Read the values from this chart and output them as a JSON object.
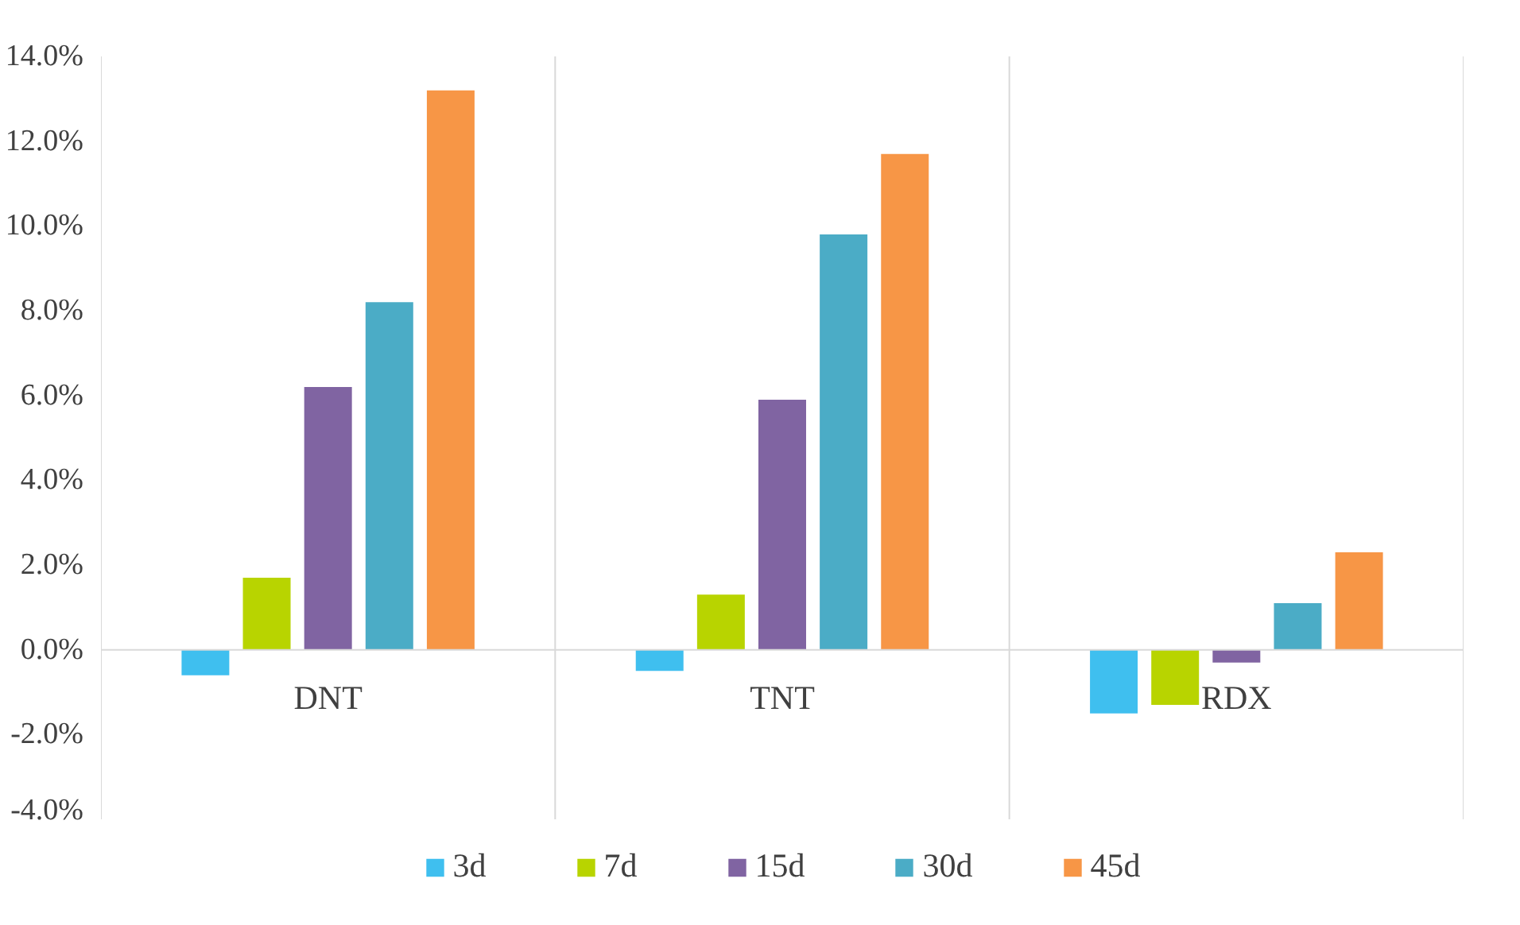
{
  "chart_data": {
    "type": "bar",
    "categories": [
      "DNT",
      "TNT",
      "RDX"
    ],
    "series": [
      {
        "name": "3d",
        "color": "#3fbfef",
        "values": [
          -0.6,
          -0.5,
          -1.5
        ]
      },
      {
        "name": "7d",
        "color": "#b8d400",
        "values": [
          1.7,
          1.3,
          -1.3
        ]
      },
      {
        "name": "15d",
        "color": "#8064a2",
        "values": [
          6.2,
          5.9,
          -0.3
        ]
      },
      {
        "name": "30d",
        "color": "#4bacc6",
        "values": [
          8.2,
          9.8,
          1.1
        ]
      },
      {
        "name": "45d",
        "color": "#f79646",
        "values": [
          13.2,
          11.7,
          2.3
        ]
      }
    ],
    "ylim": [
      -4,
      14
    ],
    "yticks": [
      {
        "value": -4,
        "label": "-4.0%"
      },
      {
        "value": -2,
        "label": "-2.0%"
      },
      {
        "value": 0,
        "label": "0.0%"
      },
      {
        "value": 2,
        "label": "2.0%"
      },
      {
        "value": 4,
        "label": "4.0%"
      },
      {
        "value": 6,
        "label": "6.0%"
      },
      {
        "value": 8,
        "label": "8.0%"
      },
      {
        "value": 10,
        "label": "10.0%"
      },
      {
        "value": 12,
        "label": "12.0%"
      },
      {
        "value": 14,
        "label": "14.0%"
      }
    ],
    "grid": "x",
    "legend": "bottom"
  }
}
